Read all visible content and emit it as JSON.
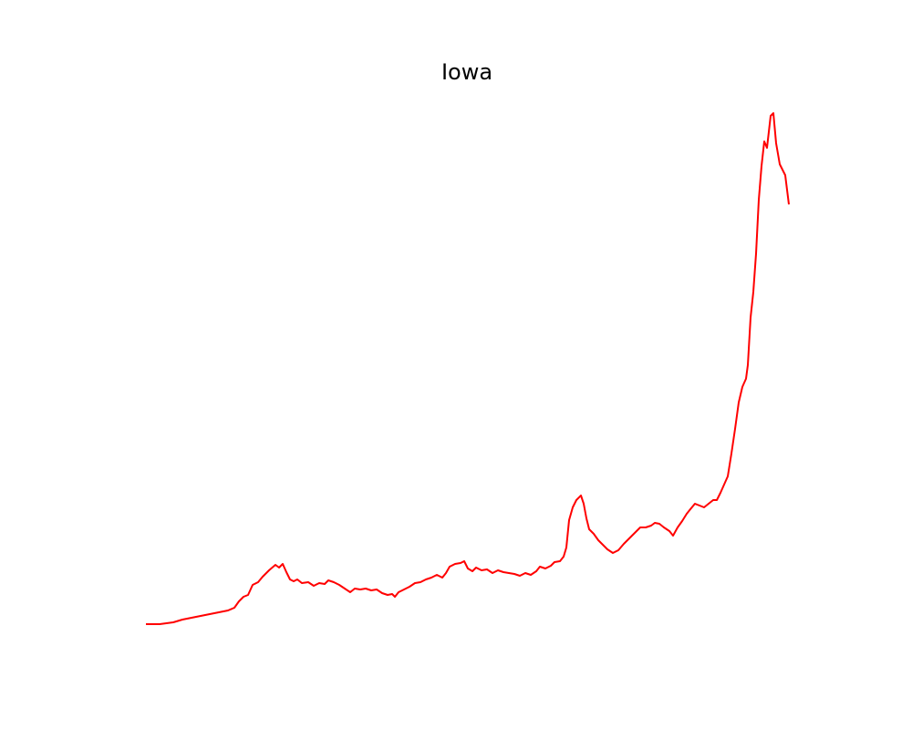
{
  "chart_data": {
    "type": "line",
    "title": "Iowa",
    "x": [
      0,
      15,
      30,
      40,
      50,
      60,
      70,
      80,
      90,
      97,
      102,
      107,
      112,
      117,
      123,
      128,
      135,
      142,
      146,
      150,
      154,
      158,
      162,
      166,
      171,
      178,
      184,
      190,
      196,
      200,
      206,
      212,
      218,
      224,
      229,
      235,
      241,
      247,
      253,
      259,
      265,
      270,
      273,
      277,
      283,
      289,
      295,
      301,
      307,
      313,
      319,
      325,
      329,
      333,
      339,
      345,
      349,
      353,
      358,
      362,
      368,
      374,
      380,
      386,
      392,
      398,
      404,
      410,
      416,
      422,
      428,
      432,
      438,
      444,
      448,
      454,
      458,
      461,
      464,
      468,
      472,
      477,
      480,
      483,
      486,
      491,
      496,
      501,
      506,
      512,
      518,
      524,
      530,
      536,
      542,
      548,
      554,
      558,
      563,
      568,
      574,
      578,
      583,
      588,
      593,
      597,
      602,
      607,
      612,
      617,
      622,
      626,
      630,
      634,
      638,
      642,
      646,
      650,
      654,
      658,
      660,
      663,
      666,
      669,
      672,
      675,
      678,
      681,
      685,
      688,
      691,
      695,
      698,
      701,
      705
    ],
    "values": [
      0,
      0,
      2,
      5,
      7,
      9,
      11,
      13,
      15,
      18,
      25,
      30,
      32,
      43,
      46,
      52,
      59,
      65,
      62,
      66,
      57,
      49,
      47,
      49,
      45,
      46,
      42,
      45,
      44,
      48,
      46,
      43,
      39,
      35,
      39,
      38,
      39,
      37,
      38,
      34,
      32,
      33,
      30,
      35,
      38,
      41,
      45,
      46,
      49,
      51,
      54,
      51,
      56,
      63,
      66,
      67,
      69,
      61,
      58,
      62,
      59,
      60,
      56,
      59,
      57,
      56,
      55,
      53,
      56,
      54,
      58,
      63,
      61,
      64,
      68,
      69,
      74,
      84,
      114,
      128,
      136,
      141,
      132,
      116,
      104,
      99,
      92,
      87,
      82,
      78,
      81,
      88,
      94,
      100,
      106,
      106,
      108,
      111,
      110,
      106,
      102,
      97,
      106,
      113,
      121,
      126,
      132,
      130,
      128,
      132,
      136,
      136,
      144,
      153,
      162,
      187,
      214,
      243,
      260,
      269,
      284,
      336,
      364,
      406,
      465,
      502,
      529,
      522,
      557,
      560,
      527,
      504,
      498,
      492,
      460
    ],
    "color": "#ff0000"
  }
}
